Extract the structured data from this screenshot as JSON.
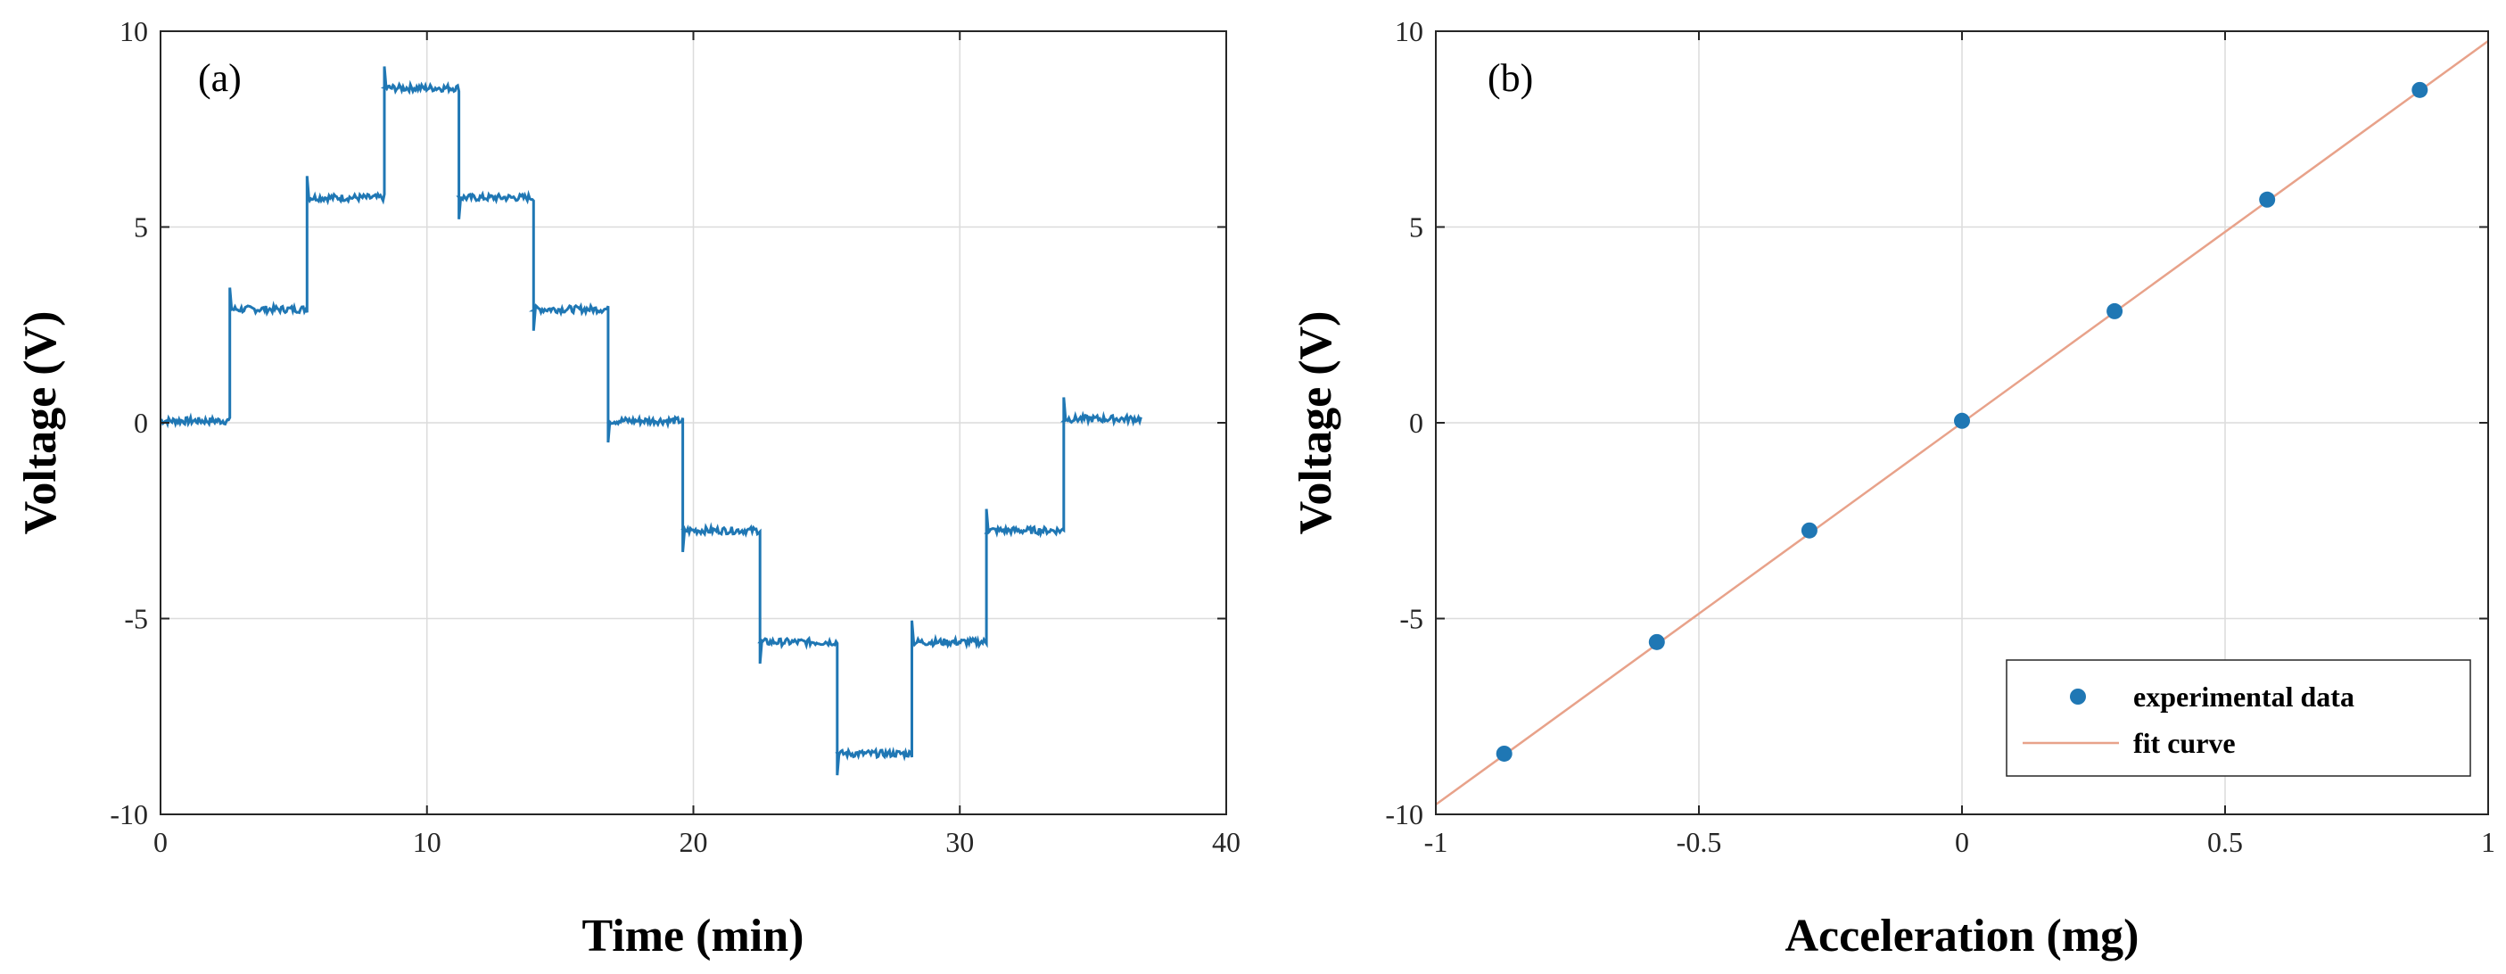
{
  "chart_data": [
    {
      "type": "line",
      "panel_label": "(a)",
      "xlabel": "Time (min)",
      "ylabel": "Voltage (V)",
      "xlim": [
        0,
        40
      ],
      "ylim": [
        -10,
        10
      ],
      "xticks": [
        "0",
        "10",
        "20",
        "30",
        "40"
      ],
      "yticks": [
        "-10",
        "-5",
        "0",
        "5",
        "10"
      ],
      "grid": true,
      "color": "#1f77b4",
      "series": [
        {
          "name": "voltage",
          "steps": [
            {
              "t0": 0.0,
              "t1": 2.6,
              "v": 0.05
            },
            {
              "t0": 2.6,
              "t1": 5.5,
              "v": 2.9
            },
            {
              "t0": 5.5,
              "t1": 8.4,
              "v": 5.75
            },
            {
              "t0": 8.4,
              "t1": 11.2,
              "v": 8.55
            },
            {
              "t0": 11.2,
              "t1": 14.0,
              "v": 5.75
            },
            {
              "t0": 14.0,
              "t1": 16.8,
              "v": 2.9
            },
            {
              "t0": 16.8,
              "t1": 19.6,
              "v": 0.05
            },
            {
              "t0": 19.6,
              "t1": 22.5,
              "v": -2.75
            },
            {
              "t0": 22.5,
              "t1": 25.4,
              "v": -5.6
            },
            {
              "t0": 25.4,
              "t1": 28.2,
              "v": -8.45
            },
            {
              "t0": 28.2,
              "t1": 31.0,
              "v": -5.6
            },
            {
              "t0": 31.0,
              "t1": 33.9,
              "v": -2.75
            },
            {
              "t0": 33.9,
              "t1": 36.8,
              "v": 0.1
            }
          ]
        }
      ]
    },
    {
      "type": "scatter",
      "panel_label": "(b)",
      "xlabel": "Acceleration (mg)",
      "ylabel": "Voltage (V)",
      "xlim": [
        -1,
        1
      ],
      "ylim": [
        -10,
        10
      ],
      "xticks": [
        "-1",
        "-0.5",
        "0",
        "0.5",
        "1"
      ],
      "yticks": [
        "-10",
        "-5",
        "0",
        "5",
        "10"
      ],
      "grid": true,
      "legend_position": "bottom-right",
      "series": [
        {
          "name": "experimental data",
          "kind": "scatter",
          "color": "#1f77b4",
          "x": [
            -0.87,
            -0.58,
            -0.29,
            0.0,
            0.29,
            0.58,
            0.87
          ],
          "y": [
            -8.45,
            -5.6,
            -2.75,
            0.05,
            2.85,
            5.7,
            8.5
          ]
        },
        {
          "name": "fit curve",
          "kind": "line",
          "color": "#e8a28a",
          "slope": 9.75,
          "intercept": 0.0
        }
      ]
    }
  ]
}
